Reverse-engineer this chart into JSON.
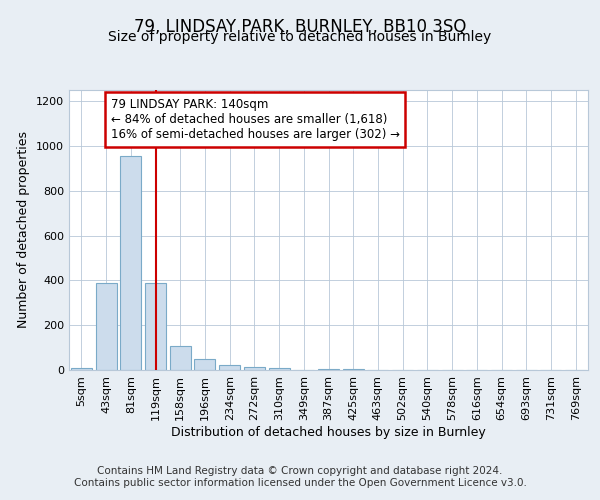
{
  "title": "79, LINDSAY PARK, BURNLEY, BB10 3SQ",
  "subtitle": "Size of property relative to detached houses in Burnley",
  "xlabel": "Distribution of detached houses by size in Burnley",
  "ylabel": "Number of detached properties",
  "categories": [
    "5sqm",
    "43sqm",
    "81sqm",
    "119sqm",
    "158sqm",
    "196sqm",
    "234sqm",
    "272sqm",
    "310sqm",
    "349sqm",
    "387sqm",
    "425sqm",
    "463sqm",
    "502sqm",
    "540sqm",
    "578sqm",
    "616sqm",
    "654sqm",
    "693sqm",
    "731sqm",
    "769sqm"
  ],
  "values": [
    10,
    390,
    955,
    390,
    105,
    50,
    22,
    13,
    8,
    0,
    5,
    5,
    0,
    0,
    0,
    0,
    0,
    0,
    0,
    0,
    0
  ],
  "bar_color": "#ccdcec",
  "bar_edge_color": "#7aaac8",
  "vline_x": 3,
  "vline_color": "#cc0000",
  "annotation_text": "79 LINDSAY PARK: 140sqm\n← 84% of detached houses are smaller (1,618)\n16% of semi-detached houses are larger (302) →",
  "annotation_box_color": "#ffffff",
  "annotation_box_edge": "#cc0000",
  "ylim": [
    0,
    1250
  ],
  "yticks": [
    0,
    200,
    400,
    600,
    800,
    1000,
    1200
  ],
  "footer": "Contains HM Land Registry data © Crown copyright and database right 2024.\nContains public sector information licensed under the Open Government Licence v3.0.",
  "bg_color": "#e8eef4",
  "plot_bg_color": "#ffffff",
  "grid_color": "#b8c8d8",
  "title_fontsize": 12,
  "subtitle_fontsize": 10,
  "axis_label_fontsize": 9,
  "tick_fontsize": 8,
  "footer_fontsize": 7.5
}
